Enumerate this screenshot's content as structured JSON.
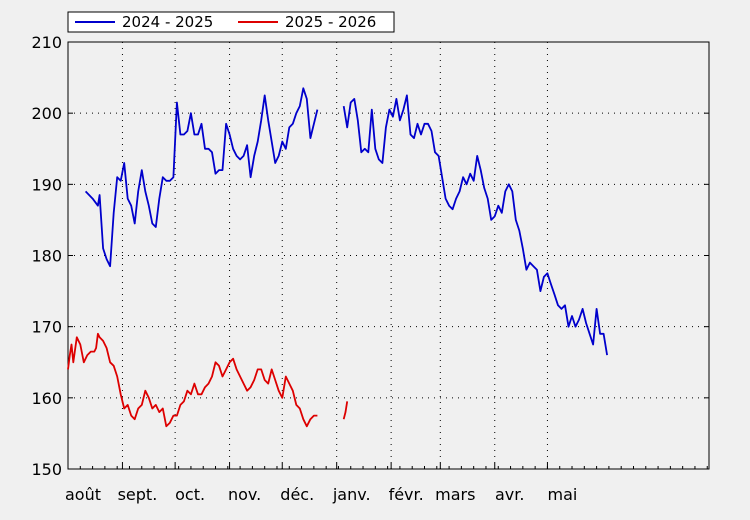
{
  "chart_data": {
    "type": "line",
    "title": "",
    "xlabel": "",
    "ylabel": "",
    "x_domain": [
      0,
      365
    ],
    "ylim": [
      150,
      210
    ],
    "yticks": [
      150,
      160,
      170,
      180,
      190,
      200,
      210
    ],
    "xticks": [
      {
        "label": "août",
        "pos": 0
      },
      {
        "label": "sept.",
        "pos": 31
      },
      {
        "label": "oct.",
        "pos": 61
      },
      {
        "label": "nov.",
        "pos": 92
      },
      {
        "label": "déc.",
        "pos": 122
      },
      {
        "label": "janv.",
        "pos": 153
      },
      {
        "label": "févr.",
        "pos": 184
      },
      {
        "label": "mars",
        "pos": 212
      },
      {
        "label": "avr.",
        "pos": 243
      },
      {
        "label": "mai",
        "pos": 273
      }
    ],
    "grid": true,
    "legend_position": "top-left",
    "series": [
      {
        "name": "2024 - 2025",
        "color": "#0000cc",
        "segments": [
          [
            [
              10,
              189
            ],
            [
              14,
              188
            ],
            [
              17,
              187
            ],
            [
              18,
              188.5
            ],
            [
              20,
              181
            ],
            [
              22,
              179.5
            ],
            [
              24,
              178.5
            ],
            [
              26,
              186
            ],
            [
              28,
              191
            ],
            [
              30,
              190.5
            ],
            [
              32,
              193
            ],
            [
              34,
              188
            ],
            [
              36,
              187
            ],
            [
              38,
              184.5
            ],
            [
              40,
              189
            ],
            [
              42,
              192
            ],
            [
              44,
              189
            ],
            [
              46,
              187
            ],
            [
              48,
              184.5
            ],
            [
              50,
              184
            ],
            [
              52,
              188
            ],
            [
              54,
              191
            ],
            [
              56,
              190.5
            ],
            [
              58,
              190.5
            ],
            [
              60,
              191
            ],
            [
              62,
              201.5
            ],
            [
              64,
              197
            ],
            [
              66,
              197
            ],
            [
              68,
              197.5
            ],
            [
              70,
              200
            ],
            [
              72,
              197
            ],
            [
              74,
              197
            ],
            [
              76,
              198.5
            ],
            [
              78,
              195
            ],
            [
              80,
              195
            ],
            [
              82,
              194.5
            ],
            [
              84,
              191.5
            ],
            [
              86,
              192
            ],
            [
              88,
              192
            ],
            [
              90,
              198.5
            ],
            [
              92,
              197
            ],
            [
              94,
              195
            ],
            [
              96,
              194
            ],
            [
              98,
              193.5
            ],
            [
              100,
              194
            ],
            [
              102,
              195.5
            ],
            [
              104,
              191
            ],
            [
              106,
              194
            ],
            [
              108,
              196
            ],
            [
              110,
              199
            ],
            [
              112,
              202.5
            ],
            [
              114,
              199
            ],
            [
              116,
              196
            ],
            [
              118,
              193
            ],
            [
              120,
              194
            ],
            [
              122,
              196
            ],
            [
              124,
              195
            ],
            [
              126,
              198
            ],
            [
              128,
              198.5
            ],
            [
              130,
              200
            ],
            [
              132,
              201
            ],
            [
              134,
              203.5
            ],
            [
              136,
              202
            ],
            [
              138,
              196.5
            ],
            [
              140,
              198.5
            ],
            [
              142,
              200.5
            ]
          ],
          [
            [
              157,
              201
            ],
            [
              159,
              198
            ],
            [
              161,
              201.5
            ],
            [
              163,
              202
            ],
            [
              165,
              199
            ],
            [
              167,
              194.5
            ],
            [
              169,
              195
            ],
            [
              171,
              194.5
            ],
            [
              173,
              200.5
            ],
            [
              175,
              195
            ],
            [
              177,
              193.5
            ],
            [
              179,
              193
            ],
            [
              181,
              198
            ],
            [
              183,
              200.5
            ],
            [
              185,
              199.5
            ],
            [
              187,
              202
            ],
            [
              189,
              199
            ],
            [
              191,
              200.5
            ],
            [
              193,
              202.5
            ],
            [
              195,
              197
            ],
            [
              197,
              196.5
            ],
            [
              199,
              198.5
            ],
            [
              201,
              197
            ],
            [
              203,
              198.5
            ],
            [
              205,
              198.5
            ],
            [
              207,
              197.5
            ],
            [
              209,
              194.5
            ],
            [
              211,
              194
            ],
            [
              213,
              191
            ],
            [
              215,
              188
            ],
            [
              217,
              187
            ],
            [
              219,
              186.5
            ],
            [
              221,
              188
            ],
            [
              223,
              189
            ],
            [
              225,
              191
            ],
            [
              227,
              190
            ],
            [
              229,
              191.5
            ],
            [
              231,
              190.5
            ],
            [
              233,
              194
            ],
            [
              235,
              192
            ],
            [
              237,
              189.5
            ],
            [
              239,
              188
            ],
            [
              241,
              185
            ],
            [
              243,
              185.5
            ],
            [
              245,
              187
            ],
            [
              247,
              186
            ],
            [
              249,
              189
            ],
            [
              251,
              190
            ],
            [
              253,
              189
            ],
            [
              255,
              185
            ],
            [
              257,
              183.5
            ],
            [
              259,
              181
            ],
            [
              261,
              178
            ],
            [
              263,
              179
            ],
            [
              265,
              178.5
            ],
            [
              267,
              178
            ],
            [
              269,
              175
            ],
            [
              271,
              177
            ],
            [
              273,
              177.5
            ],
            [
              275,
              176
            ],
            [
              277,
              174.5
            ],
            [
              279,
              173
            ],
            [
              281,
              172.5
            ],
            [
              283,
              173
            ],
            [
              285,
              170
            ],
            [
              287,
              171.5
            ],
            [
              289,
              170
            ],
            [
              291,
              171
            ],
            [
              293,
              172.5
            ],
            [
              295,
              170.5
            ],
            [
              297,
              169
            ],
            [
              299,
              167.5
            ],
            [
              301,
              172.5
            ],
            [
              303,
              169
            ],
            [
              305,
              169
            ],
            [
              307,
              166
            ]
          ]
        ]
      },
      {
        "name": "2025 - 2026",
        "color": "#dd0000",
        "segments": [
          [
            [
              0,
              164
            ],
            [
              1,
              166
            ],
            [
              2,
              167.5
            ],
            [
              3,
              165
            ],
            [
              5,
              168.5
            ],
            [
              7,
              167.5
            ],
            [
              9,
              165
            ],
            [
              11,
              166
            ],
            [
              13,
              166.5
            ],
            [
              15,
              166.5
            ],
            [
              16,
              167
            ],
            [
              17,
              169
            ],
            [
              18,
              168.5
            ],
            [
              20,
              168
            ],
            [
              22,
              167
            ],
            [
              24,
              165
            ],
            [
              26,
              164.5
            ],
            [
              28,
              163
            ],
            [
              30,
              160.5
            ],
            [
              32,
              158.5
            ],
            [
              34,
              159
            ],
            [
              36,
              157.5
            ],
            [
              38,
              157
            ],
            [
              40,
              158.5
            ],
            [
              42,
              159
            ],
            [
              44,
              161
            ],
            [
              46,
              160
            ],
            [
              48,
              158.5
            ],
            [
              50,
              159
            ],
            [
              52,
              158
            ],
            [
              54,
              158.5
            ],
            [
              56,
              156
            ],
            [
              58,
              156.5
            ],
            [
              60,
              157.5
            ],
            [
              62,
              157.5
            ],
            [
              64,
              159
            ],
            [
              66,
              159.5
            ],
            [
              68,
              161
            ],
            [
              70,
              160.5
            ],
            [
              72,
              162
            ],
            [
              74,
              160.5
            ],
            [
              76,
              160.5
            ],
            [
              78,
              161.5
            ],
            [
              80,
              162
            ],
            [
              82,
              163
            ],
            [
              84,
              165
            ],
            [
              86,
              164.5
            ],
            [
              88,
              163
            ],
            [
              90,
              164
            ],
            [
              92,
              165
            ],
            [
              94,
              165.5
            ],
            [
              96,
              164
            ],
            [
              98,
              163
            ],
            [
              100,
              162
            ],
            [
              102,
              161
            ],
            [
              104,
              161.5
            ],
            [
              106,
              162.5
            ],
            [
              108,
              164
            ],
            [
              110,
              164
            ],
            [
              112,
              162.5
            ],
            [
              114,
              162
            ],
            [
              116,
              164
            ],
            [
              118,
              162.5
            ],
            [
              120,
              161
            ],
            [
              122,
              160
            ],
            [
              124,
              163
            ],
            [
              126,
              162
            ],
            [
              128,
              161
            ],
            [
              130,
              159
            ],
            [
              132,
              158.5
            ],
            [
              134,
              157
            ],
            [
              136,
              156
            ],
            [
              138,
              157
            ],
            [
              140,
              157.5
            ],
            [
              142,
              157.5
            ]
          ],
          [
            [
              157,
              157
            ],
            [
              158,
              158
            ],
            [
              159,
              159.5
            ]
          ]
        ]
      }
    ]
  }
}
